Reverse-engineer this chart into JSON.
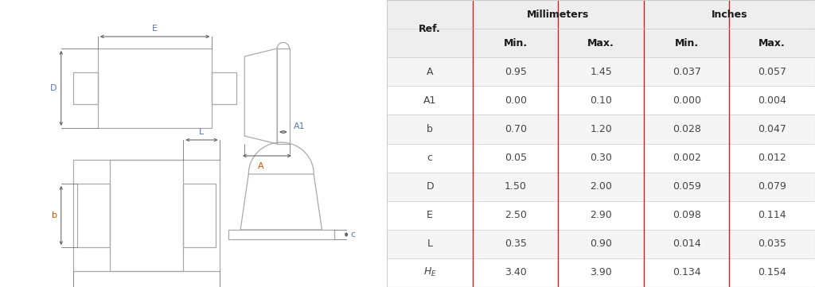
{
  "rows": [
    [
      "A",
      "0.95",
      "1.45",
      "0.037",
      "0.057"
    ],
    [
      "A1",
      "0.00",
      "0.10",
      "0.000",
      "0.004"
    ],
    [
      "b",
      "0.70",
      "1.20",
      "0.028",
      "0.047"
    ],
    [
      "c",
      "0.05",
      "0.30",
      "0.002",
      "0.012"
    ],
    [
      "D",
      "1.50",
      "2.00",
      "0.059",
      "0.079"
    ],
    [
      "E",
      "2.50",
      "2.90",
      "0.098",
      "0.114"
    ],
    [
      "L",
      "0.35",
      "0.90",
      "0.014",
      "0.035"
    ],
    [
      "HE",
      "3.40",
      "3.90",
      "0.134",
      "0.154"
    ]
  ],
  "header_bg": "#eeeeee",
  "row_bg_even": "#ffffff",
  "row_bg_odd": "#f5f5f5",
  "red_line_color": "#cc2222",
  "text_color_black": "#1a1a1a",
  "text_color_data": "#444444",
  "diagram_line_color": "#aaaaaa",
  "dim_label_orange": "#cc5500",
  "dim_label_blue": "#5577bb",
  "dim_line_color": "#555555",
  "background_color": "#ffffff"
}
